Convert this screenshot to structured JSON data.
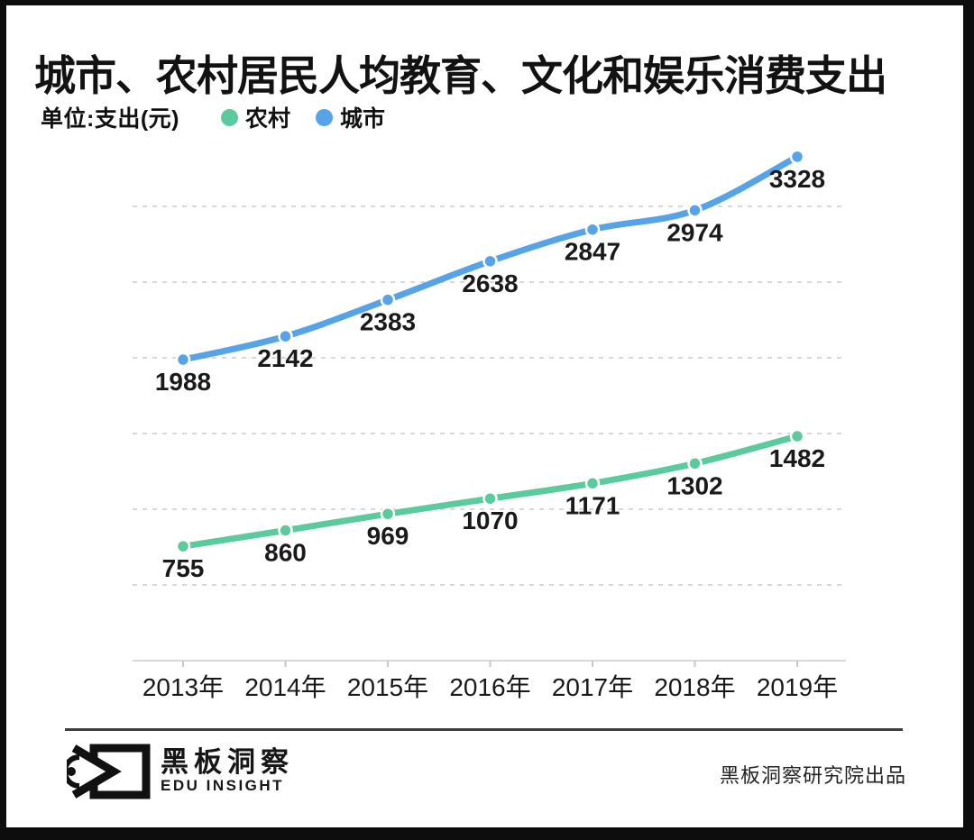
{
  "header": {
    "title": "城市、农村居民人均教育、文化和娱乐消费支出",
    "unit_label": "单位:支出(元)"
  },
  "chart_data": {
    "type": "line",
    "title": "城市、农村居民人均教育、文化和娱乐消费支出",
    "ylabel": "支出(元)",
    "categories": [
      "2013年",
      "2014年",
      "2015年",
      "2016年",
      "2017年",
      "2018年",
      "2019年"
    ],
    "series": [
      {
        "key": "rural",
        "name": "农村",
        "color": "#5BCB9E",
        "values": [
          755,
          860,
          969,
          1070,
          1171,
          1302,
          1482
        ]
      },
      {
        "key": "urban",
        "name": "城市",
        "color": "#57A3E8",
        "values": [
          1988,
          2142,
          2383,
          2638,
          2847,
          2974,
          3328
        ]
      }
    ],
    "ylim": [
      0,
      3500
    ],
    "grid": true,
    "grid_values": [
      500,
      1000,
      1500,
      2000,
      2500,
      3000
    ],
    "legend_position": "top-left",
    "gridline_color": "#d8d8d8",
    "axis_color": "#d9d9d9",
    "tick_color": "#c9c9c9",
    "label_color": "#1a1a1a"
  },
  "footer": {
    "logo_cn": "黑板洞察",
    "logo_en": "EDU INSIGHT",
    "credit": "黑板洞察研究院出品"
  }
}
